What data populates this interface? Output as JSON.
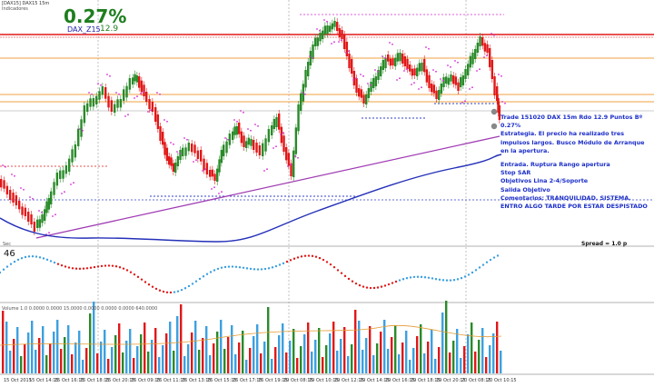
{
  "header": {
    "line1": "[DAX15] DAX15 15m",
    "line2": "Indicadores",
    "pct": "0.27%",
    "symbol": "DAX_Z15",
    "value": "12.9"
  },
  "notes": {
    "line1": "Trade 151020 DAX 15m Rdo 12.9 Puntos Bº 0.27%",
    "line2": "Estrategia. El precio ha realizado tres impulsos largos. Busco Módulo de Arranque en la apertura.",
    "blank": "",
    "line3": "Entrada. Ruptura Rango apertura",
    "line4": "Stop SAR",
    "line5": "Objetivos Lina 2-4/Soporte",
    "line6": "Salida Objetivo",
    "line7": "Comentarios: TRANQUILIDAD. SISTEMA. ENTRO ALGO TARDE POR ESTAR DESPISTADO"
  },
  "indicator_label": "46",
  "indicator_prefix": "Sec",
  "spread_label": "Spread = 1.0 p",
  "volume_label": "Volume 1.0  0.0000  0.0000  15.0000  0.0000  0.0000  0.0000  640.0000",
  "dates": [
    "15 Oct 2015",
    "15 Oct 14:15",
    "15 Oct 16:15",
    "15 Oct 18:15",
    "15 Oct 20:15",
    "16 Oct 09:15",
    "16 Oct 11:15",
    "16 Oct 13:15",
    "16 Oct 15:15",
    "16 Oct 17:15",
    "16 Oct 19:15",
    "19 Oct 08:15",
    "19 Oct 10:15",
    "19 Oct 12:15",
    "19 Oct 14:15",
    "19 Oct 16:15",
    "19 Oct 18:15",
    "19 Oct 20:15",
    "20 Oct 08:15",
    "20 Oct 10:15"
  ],
  "colors": {
    "bull": "#2a8a2a",
    "bear": "#e01818",
    "sar": "#d52fd5",
    "ma": "#2430b8",
    "trend": "#a03cb4",
    "level_orange": "#f0a040",
    "level_red": "#e01818",
    "level_blue": "#3040c8",
    "volume": "#3ca0e0"
  }
}
